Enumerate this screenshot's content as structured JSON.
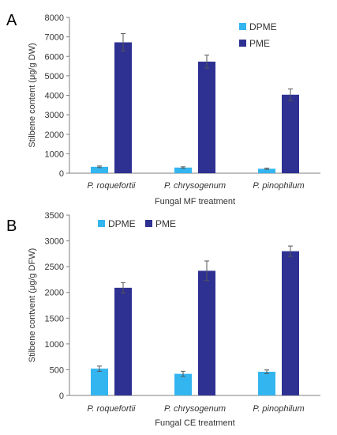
{
  "chart_data": [
    {
      "panel": "A",
      "type": "bar",
      "categories": [
        "P. roquefortii",
        "P. chrysogenum",
        "P. pinophilum"
      ],
      "series": [
        {
          "name": "DPME",
          "color": "#33B5F0",
          "values": [
            330,
            290,
            230
          ],
          "errors": [
            40,
            40,
            30
          ]
        },
        {
          "name": "PME",
          "color": "#2E3192",
          "values": [
            6720,
            5730,
            4030
          ],
          "errors": [
            450,
            330,
            300
          ]
        }
      ],
      "xlabel": "Fungal MF treatment",
      "ylabel": "Stilbene content (μg/g DW)",
      "ylim": [
        0,
        8000
      ],
      "yticks": [
        0,
        1000,
        2000,
        3000,
        4000,
        5000,
        6000,
        7000,
        8000
      ],
      "grid": false,
      "legend_placement": "top-right, stacked vertically"
    },
    {
      "panel": "B",
      "type": "bar",
      "categories": [
        "P. roquefortii",
        "P. chrysogenum",
        "P. pinophilum"
      ],
      "series": [
        {
          "name": "DPME",
          "color": "#33B5F0",
          "values": [
            520,
            420,
            460
          ],
          "errors": [
            50,
            50,
            35
          ]
        },
        {
          "name": "PME",
          "color": "#2E3192",
          "values": [
            2090,
            2420,
            2800
          ],
          "errors": [
            100,
            190,
            100
          ]
        }
      ],
      "xlabel": "Fungal CE treatment",
      "ylabel": "Stilbene contvent (μg/g DFW)",
      "ylim": [
        0,
        3500
      ],
      "yticks": [
        0,
        500,
        1000,
        1500,
        2000,
        2500,
        3000,
        3500
      ],
      "grid": false,
      "legend_placement": "top-left, horizontal"
    }
  ]
}
